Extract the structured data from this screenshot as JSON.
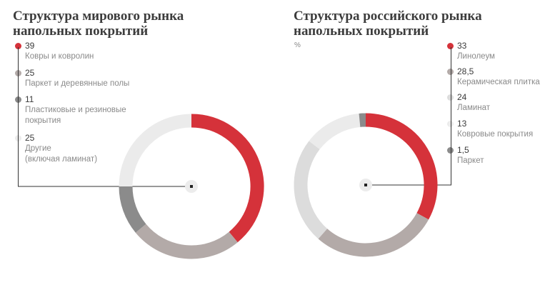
{
  "chart_data": [
    {
      "type": "pie",
      "title": [
        "Структура мирового рынка",
        "напольных покрытий"
      ],
      "unit": "",
      "series": [
        {
          "name": "Ковры и ковролин",
          "value": 39,
          "display": "39",
          "color": "#d5323a"
        },
        {
          "name": "Паркет и деревянные полы",
          "value": 25,
          "display": "25",
          "color": "#b3aaa8"
        },
        {
          "name": "Пластиковые и резиновые\nпокрытия",
          "value": 11,
          "display": "11",
          "color": "#8b8b8b"
        },
        {
          "name": "Другие\n(включая ламинат)",
          "value": 25,
          "display": "25",
          "color": "#ebebeb"
        }
      ]
    },
    {
      "type": "pie",
      "title": [
        "Структура российского рынка",
        "напольных покрытий"
      ],
      "unit": "%",
      "series": [
        {
          "name": "Линолеум",
          "value": 33,
          "display": "33",
          "color": "#d5323a"
        },
        {
          "name": "Керамическая плитка",
          "value": 28.5,
          "display": "28,5",
          "color": "#b3aaa8"
        },
        {
          "name": "Ламинат",
          "value": 24,
          "display": "24",
          "color": "#dcdcdc"
        },
        {
          "name": "Ковровые покрытия",
          "value": 13,
          "display": "13",
          "color": "#ebebeb"
        },
        {
          "name": "Паркет",
          "value": 1.5,
          "display": "1,5",
          "color": "#8b8b8b"
        }
      ]
    }
  ]
}
